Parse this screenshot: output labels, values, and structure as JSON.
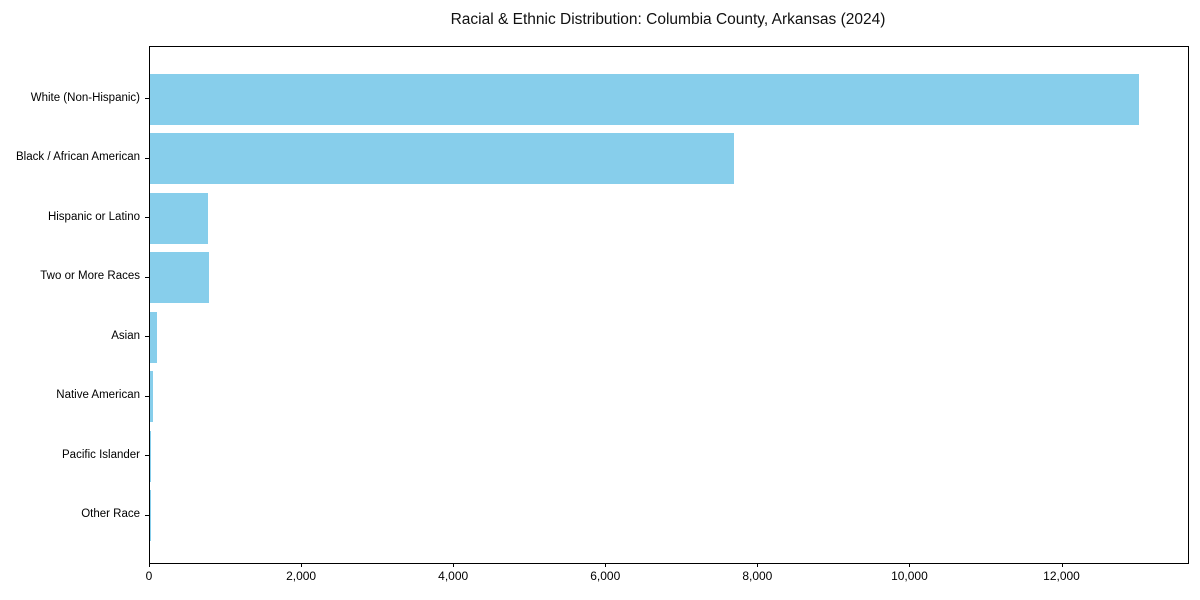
{
  "chart_data": {
    "type": "bar",
    "orientation": "horizontal",
    "title": "Racial & Ethnic Distribution: Columbia County, Arkansas (2024)",
    "categories": [
      "White (Non-Hispanic)",
      "Black / African American",
      "Hispanic or Latino",
      "Two or More Races",
      "Asian",
      "Native American",
      "Pacific Islander",
      "Other Race"
    ],
    "values": [
      13000,
      7680,
      765,
      775,
      90,
      45,
      15,
      5
    ],
    "xlabel": "",
    "ylabel": "",
    "xlim": [
      0,
      13650
    ],
    "xticks": [
      0,
      2000,
      4000,
      6000,
      8000,
      10000,
      12000
    ],
    "xtick_labels": [
      "0",
      "2,000",
      "4,000",
      "6,000",
      "8,000",
      "10,000",
      "12,000"
    ],
    "bar_color": "#87CEEB",
    "axis_color": "#000000",
    "background": "#ffffff",
    "grid": false,
    "legend": null
  }
}
